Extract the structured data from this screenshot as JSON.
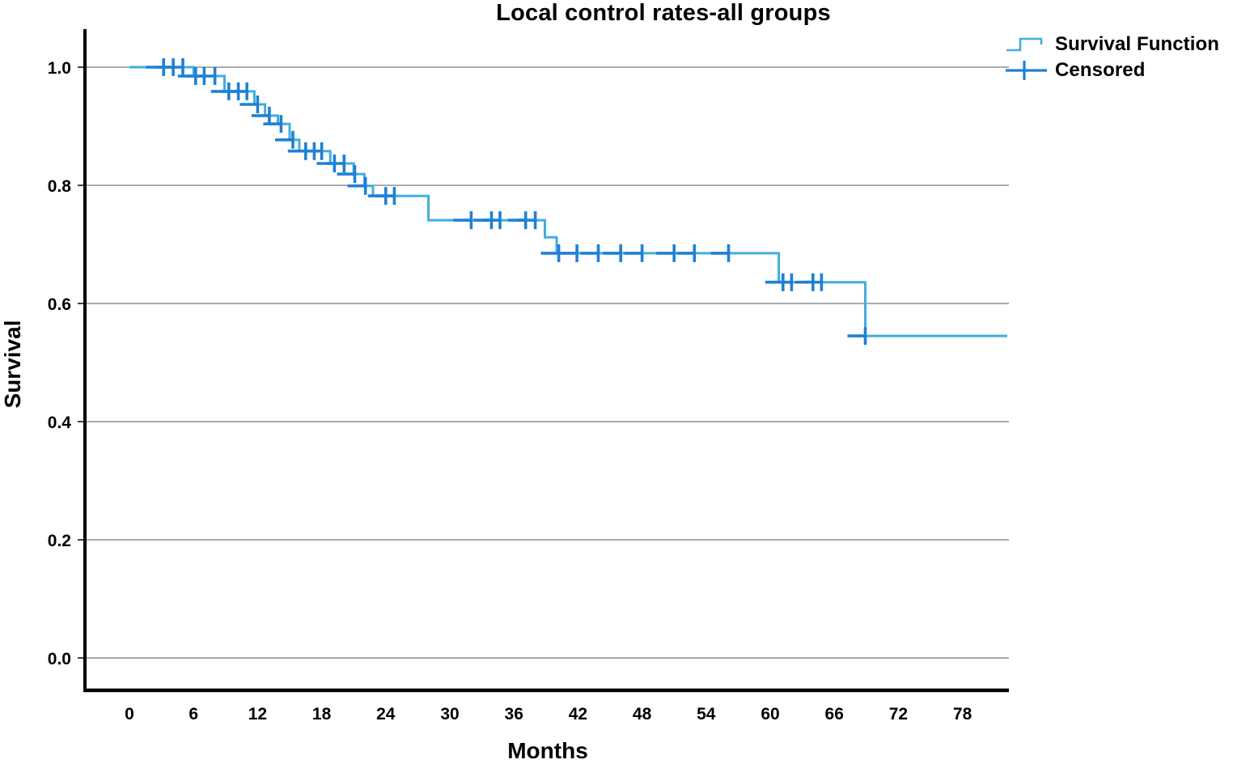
{
  "chart_data": {
    "type": "line",
    "subtype": "kaplan-meier-step",
    "title": "Local control rates-all groups",
    "xlabel": "Months",
    "ylabel": "Survival",
    "x_ticks": [
      0,
      6,
      12,
      18,
      24,
      30,
      36,
      42,
      48,
      54,
      60,
      66,
      72,
      78
    ],
    "y_ticks": [
      "0.0",
      "0.2",
      "0.4",
      "0.6",
      "0.8",
      "1.0"
    ],
    "xlim": [
      -4.3,
      82.3
    ],
    "ylim": [
      -0.055,
      1.065
    ],
    "grid": "horizontal",
    "legend_position": "top-right-outside",
    "legend": [
      {
        "label": "Survival Function",
        "marker": "step-line"
      },
      {
        "label": "Censored",
        "marker": "plus"
      }
    ],
    "series": [
      {
        "name": "Survival Function",
        "steps": [
          [
            0,
            1.0
          ],
          [
            6.0,
            0.985
          ],
          [
            8.9,
            0.959
          ],
          [
            11.7,
            0.937
          ],
          [
            12.7,
            0.918
          ],
          [
            13.9,
            0.904
          ],
          [
            15.0,
            0.877
          ],
          [
            15.9,
            0.858
          ],
          [
            18.8,
            0.837
          ],
          [
            21.0,
            0.819
          ],
          [
            22.0,
            0.799
          ],
          [
            22.8,
            0.782
          ],
          [
            28.0,
            0.741
          ],
          [
            38.9,
            0.712
          ],
          [
            40.0,
            0.685
          ],
          [
            60.8,
            0.636
          ],
          [
            68.9,
            0.545
          ]
        ],
        "end_time": 82.2
      }
    ],
    "censored": [
      [
        3.2,
        1.0
      ],
      [
        4.1,
        1.0
      ],
      [
        5.0,
        1.0
      ],
      [
        6.2,
        0.985
      ],
      [
        7.0,
        0.985
      ],
      [
        8.0,
        0.985
      ],
      [
        9.3,
        0.959
      ],
      [
        10.2,
        0.959
      ],
      [
        11.0,
        0.959
      ],
      [
        12.0,
        0.937
      ],
      [
        13.1,
        0.918
      ],
      [
        14.2,
        0.904
      ],
      [
        15.3,
        0.877
      ],
      [
        16.5,
        0.858
      ],
      [
        17.3,
        0.858
      ],
      [
        18.0,
        0.858
      ],
      [
        19.2,
        0.837
      ],
      [
        20.1,
        0.837
      ],
      [
        21.1,
        0.819
      ],
      [
        22.1,
        0.799
      ],
      [
        24.0,
        0.782
      ],
      [
        24.8,
        0.782
      ],
      [
        32.0,
        0.741
      ],
      [
        33.9,
        0.741
      ],
      [
        34.7,
        0.741
      ],
      [
        37.1,
        0.741
      ],
      [
        38.0,
        0.741
      ],
      [
        40.2,
        0.685
      ],
      [
        41.9,
        0.685
      ],
      [
        43.9,
        0.685
      ],
      [
        46.0,
        0.685
      ],
      [
        48.0,
        0.685
      ],
      [
        51.0,
        0.685
      ],
      [
        52.9,
        0.685
      ],
      [
        56.1,
        0.685
      ],
      [
        61.2,
        0.636
      ],
      [
        62.0,
        0.636
      ],
      [
        64.0,
        0.636
      ],
      [
        64.8,
        0.636
      ],
      [
        68.9,
        0.545
      ]
    ],
    "colors": {
      "line": "#41aede",
      "censor": "#1f80d4",
      "grid": "#8f8f8f",
      "axis": "#000000",
      "text": "#000000"
    }
  }
}
